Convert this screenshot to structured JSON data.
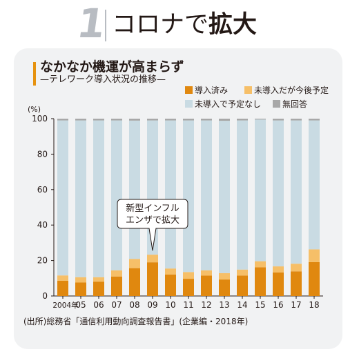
{
  "header": {
    "number": "1",
    "title_plain": "コロナで",
    "title_bold": "拡大"
  },
  "title": "なかなか機運が高まらず",
  "subtitle": "—テレワーク導入状況の推移—",
  "source": "(出所)総務省「通信利用動向調査報告書」(企業編・2018年)",
  "colors": {
    "introduced": "#e0880f",
    "planned": "#f6bf68",
    "none": "#c9dbe3",
    "no_answer": "#a8a8a8",
    "card": "#f1f2f3",
    "accent": "#e6920f"
  },
  "chart_data": {
    "type": "bar",
    "stacked": true,
    "unit_label": "(%)",
    "categories": [
      "2004年",
      "05",
      "06",
      "07",
      "08",
      "09",
      "10",
      "11",
      "12",
      "13",
      "14",
      "15",
      "16",
      "17",
      "18"
    ],
    "series": [
      {
        "name": "導入済み",
        "key": "introduced",
        "values": [
          8.6,
          7.6,
          8.1,
          11.0,
          15.7,
          19.0,
          12.1,
          9.7,
          11.5,
          9.3,
          11.5,
          16.2,
          13.3,
          13.9,
          19.1
        ]
      },
      {
        "name": "未導入だが今後予定",
        "key": "planned",
        "values": [
          3.0,
          3.0,
          2.5,
          3.5,
          5.2,
          4.3,
          3.4,
          3.8,
          3.0,
          3.6,
          3.4,
          3.4,
          3.4,
          4.3,
          7.2
        ]
      },
      {
        "name": "未導入で予定なし",
        "key": "none",
        "values": [
          87.4,
          88.4,
          88.4,
          84.5,
          78.0,
          75.7,
          83.5,
          85.5,
          84.5,
          85.9,
          84.1,
          79.9,
          82.3,
          80.8,
          72.7
        ]
      },
      {
        "name": "無回答",
        "key": "no_answer",
        "values": [
          1.0,
          1.0,
          1.0,
          1.0,
          1.1,
          1.0,
          1.0,
          1.0,
          1.0,
          1.2,
          1.0,
          0.5,
          1.0,
          1.0,
          1.0
        ]
      }
    ],
    "ylim": [
      0,
      100
    ],
    "yticks": [
      0,
      20,
      40,
      60,
      80,
      100
    ],
    "grid": false,
    "legend_position": "top-right",
    "annotation": {
      "lines": [
        "新型インフル",
        "エンザで拡大"
      ],
      "category": "09"
    }
  }
}
